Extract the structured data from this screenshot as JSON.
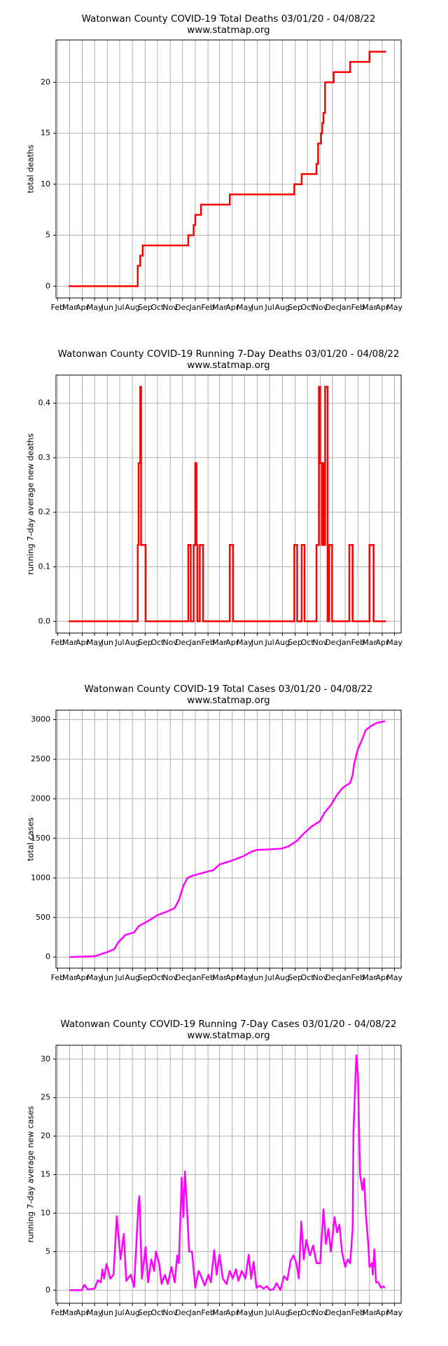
{
  "chart_data": [
    {
      "type": "line",
      "step": "post",
      "title": "Watonwan County COVID-19 Total Deaths 03/01/20 - 04/08/22",
      "subtitle": "www.statmap.org",
      "ylabel": "total deaths",
      "color": "#ff0000",
      "grid": true,
      "x": [
        "2020-03-01",
        "2020-08-14",
        "2020-08-20",
        "2020-08-26",
        "2020-12-15",
        "2020-12-28",
        "2021-01-01",
        "2021-01-15",
        "2021-03-26",
        "2021-08-30",
        "2021-09-17",
        "2021-10-23",
        "2021-10-27",
        "2021-11-03",
        "2021-11-06",
        "2021-11-09",
        "2021-11-13",
        "2021-12-04",
        "2022-01-13",
        "2022-03-01",
        "2022-04-08"
      ],
      "values": [
        0,
        2,
        3,
        4,
        5,
        6,
        7,
        8,
        9,
        10,
        11,
        12,
        14,
        15,
        16,
        17,
        20,
        21,
        22,
        23,
        23
      ],
      "xlim": [
        "2020-01-28",
        "2022-05-17"
      ],
      "ylim": [
        -1.15,
        24.15
      ],
      "yticks": [
        0,
        5,
        10,
        15,
        20
      ],
      "xticks": [
        {
          "value": "2020-02-01",
          "label": "Feb"
        },
        {
          "value": "2020-03-01",
          "label": "Mar"
        },
        {
          "value": "2020-04-01",
          "label": "Apr"
        },
        {
          "value": "2020-05-01",
          "label": "May"
        },
        {
          "value": "2020-06-01",
          "label": "Jun"
        },
        {
          "value": "2020-07-01",
          "label": "Jul"
        },
        {
          "value": "2020-08-01",
          "label": "Aug"
        },
        {
          "value": "2020-09-01",
          "label": "Sep"
        },
        {
          "value": "2020-10-01",
          "label": "Oct"
        },
        {
          "value": "2020-11-01",
          "label": "Nov"
        },
        {
          "value": "2020-12-01",
          "label": "Dec"
        },
        {
          "value": "2021-01-01",
          "label": "Jan"
        },
        {
          "value": "2021-02-01",
          "label": "Feb"
        },
        {
          "value": "2021-03-01",
          "label": "Mar"
        },
        {
          "value": "2021-04-01",
          "label": "Apr"
        },
        {
          "value": "2021-05-01",
          "label": "May"
        },
        {
          "value": "2021-06-01",
          "label": "Jun"
        },
        {
          "value": "2021-07-01",
          "label": "Jul"
        },
        {
          "value": "2021-08-01",
          "label": "Aug"
        },
        {
          "value": "2021-09-01",
          "label": "Sep"
        },
        {
          "value": "2021-10-01",
          "label": "Oct"
        },
        {
          "value": "2021-11-01",
          "label": "Nov"
        },
        {
          "value": "2021-12-01",
          "label": "Dec"
        },
        {
          "value": "2022-01-01",
          "label": "Jan"
        },
        {
          "value": "2022-02-01",
          "label": "Feb"
        },
        {
          "value": "2022-03-01",
          "label": "Mar"
        },
        {
          "value": "2022-04-01",
          "label": "Apr"
        },
        {
          "value": "2022-05-01",
          "label": "May"
        }
      ]
    },
    {
      "type": "line",
      "step": "post",
      "title": "Watonwan County COVID-19 Running 7-Day Deaths 03/01/20 - 04/08/22",
      "subtitle": "www.statmap.org",
      "ylabel": "running 7-day average new deaths",
      "color": "#ff0000",
      "grid": true,
      "x": [
        "2020-03-01",
        "2020-08-14",
        "2020-08-16",
        "2020-08-20",
        "2020-08-22",
        "2020-09-02",
        "2020-12-15",
        "2020-12-21",
        "2020-12-28",
        "2021-01-01",
        "2021-01-04",
        "2021-01-06",
        "2021-01-12",
        "2021-01-20",
        "2021-03-26",
        "2021-04-03",
        "2021-08-30",
        "2021-09-06",
        "2021-09-17",
        "2021-09-24",
        "2021-10-23",
        "2021-10-29",
        "2021-11-01",
        "2021-11-05",
        "2021-11-07",
        "2021-11-11",
        "2021-11-13",
        "2021-11-19",
        "2021-11-23",
        "2021-11-30",
        "2022-01-11",
        "2022-01-19",
        "2022-03-01",
        "2022-03-11",
        "2022-04-08"
      ],
      "values": [
        0,
        0.14,
        0.29,
        0.43,
        0.14,
        0,
        0.14,
        0,
        0.14,
        0.29,
        0.14,
        0,
        0.14,
        0,
        0.14,
        0,
        0.14,
        0,
        0.14,
        0,
        0.14,
        0.43,
        0.29,
        0.14,
        0.29,
        0.14,
        0.43,
        0,
        0.14,
        0,
        0.14,
        0,
        0.14,
        0,
        0
      ],
      "xlim": [
        "2020-01-28",
        "2022-05-17"
      ],
      "ylim": [
        -0.0215,
        0.4515
      ],
      "yticks": [
        {
          "value": 0,
          "label": "0.0"
        },
        0.1,
        0.2,
        0.3,
        0.4
      ],
      "xticks": [
        {
          "value": "2020-02-01",
          "label": "Feb"
        },
        {
          "value": "2020-03-01",
          "label": "Mar"
        },
        {
          "value": "2020-04-01",
          "label": "Apr"
        },
        {
          "value": "2020-05-01",
          "label": "May"
        },
        {
          "value": "2020-06-01",
          "label": "Jun"
        },
        {
          "value": "2020-07-01",
          "label": "Jul"
        },
        {
          "value": "2020-08-01",
          "label": "Aug"
        },
        {
          "value": "2020-09-01",
          "label": "Sep"
        },
        {
          "value": "2020-10-01",
          "label": "Oct"
        },
        {
          "value": "2020-11-01",
          "label": "Nov"
        },
        {
          "value": "2020-12-01",
          "label": "Dec"
        },
        {
          "value": "2021-01-01",
          "label": "Jan"
        },
        {
          "value": "2021-02-01",
          "label": "Feb"
        },
        {
          "value": "2021-03-01",
          "label": "Mar"
        },
        {
          "value": "2021-04-01",
          "label": "Apr"
        },
        {
          "value": "2021-05-01",
          "label": "May"
        },
        {
          "value": "2021-06-01",
          "label": "Jun"
        },
        {
          "value": "2021-07-01",
          "label": "Jul"
        },
        {
          "value": "2021-08-01",
          "label": "Aug"
        },
        {
          "value": "2021-09-01",
          "label": "Sep"
        },
        {
          "value": "2021-10-01",
          "label": "Oct"
        },
        {
          "value": "2021-11-01",
          "label": "Nov"
        },
        {
          "value": "2021-12-01",
          "label": "Dec"
        },
        {
          "value": "2022-01-01",
          "label": "Jan"
        },
        {
          "value": "2022-02-01",
          "label": "Feb"
        },
        {
          "value": "2022-03-01",
          "label": "Mar"
        },
        {
          "value": "2022-04-01",
          "label": "Apr"
        },
        {
          "value": "2022-05-01",
          "label": "May"
        }
      ]
    },
    {
      "type": "line",
      "title": "Watonwan County COVID-19 Total Cases 03/01/20 - 04/08/22",
      "subtitle": "www.statmap.org",
      "ylabel": "total cases",
      "color": "#ff00ff",
      "grid": true,
      "x": [
        "2020-03-01",
        "2020-05-01",
        "2020-05-30",
        "2020-06-18",
        "2020-06-28",
        "2020-07-15",
        "2020-08-05",
        "2020-08-16",
        "2020-08-30",
        "2020-09-16",
        "2020-10-01",
        "2020-10-22",
        "2020-11-12",
        "2020-11-22",
        "2020-12-03",
        "2020-12-13",
        "2020-12-26",
        "2021-01-24",
        "2021-02-14",
        "2021-03-01",
        "2021-03-26",
        "2021-04-26",
        "2021-05-17",
        "2021-06-01",
        "2021-06-29",
        "2021-07-30",
        "2021-08-16",
        "2021-09-06",
        "2021-09-20",
        "2021-10-11",
        "2021-11-01",
        "2021-11-11",
        "2021-11-27",
        "2021-12-12",
        "2021-12-26",
        "2022-01-13",
        "2022-01-19",
        "2022-01-23",
        "2022-02-01",
        "2022-02-12",
        "2022-02-20",
        "2022-03-05",
        "2022-03-19",
        "2022-04-08"
      ],
      "values": [
        0,
        10,
        60,
        100,
        190,
        280,
        310,
        390,
        430,
        480,
        530,
        570,
        620,
        720,
        900,
        1000,
        1030,
        1070,
        1100,
        1170,
        1210,
        1270,
        1330,
        1355,
        1360,
        1370,
        1400,
        1470,
        1550,
        1650,
        1720,
        1820,
        1920,
        2050,
        2140,
        2200,
        2300,
        2450,
        2630,
        2760,
        2870,
        2920,
        2960,
        2980
      ],
      "xlim": [
        "2020-01-28",
        "2022-05-17"
      ],
      "ylim": [
        -140,
        3120
      ],
      "yticks": [
        0,
        500,
        1000,
        1500,
        2000,
        2500,
        3000
      ],
      "xticks": [
        {
          "value": "2020-02-01",
          "label": "Feb"
        },
        {
          "value": "2020-03-01",
          "label": "Mar"
        },
        {
          "value": "2020-04-01",
          "label": "Apr"
        },
        {
          "value": "2020-05-01",
          "label": "May"
        },
        {
          "value": "2020-06-01",
          "label": "Jun"
        },
        {
          "value": "2020-07-01",
          "label": "Jul"
        },
        {
          "value": "2020-08-01",
          "label": "Aug"
        },
        {
          "value": "2020-09-01",
          "label": "Sep"
        },
        {
          "value": "2020-10-01",
          "label": "Oct"
        },
        {
          "value": "2020-11-01",
          "label": "Nov"
        },
        {
          "value": "2020-12-01",
          "label": "Dec"
        },
        {
          "value": "2021-01-01",
          "label": "Jan"
        },
        {
          "value": "2021-02-01",
          "label": "Feb"
        },
        {
          "value": "2021-03-01",
          "label": "Mar"
        },
        {
          "value": "2021-04-01",
          "label": "Apr"
        },
        {
          "value": "2021-05-01",
          "label": "May"
        },
        {
          "value": "2021-06-01",
          "label": "Jun"
        },
        {
          "value": "2021-07-01",
          "label": "Jul"
        },
        {
          "value": "2021-08-01",
          "label": "Aug"
        },
        {
          "value": "2021-09-01",
          "label": "Sep"
        },
        {
          "value": "2021-10-01",
          "label": "Oct"
        },
        {
          "value": "2021-11-01",
          "label": "Nov"
        },
        {
          "value": "2021-12-01",
          "label": "Dec"
        },
        {
          "value": "2022-01-01",
          "label": "Jan"
        },
        {
          "value": "2022-02-01",
          "label": "Feb"
        },
        {
          "value": "2022-03-01",
          "label": "Mar"
        },
        {
          "value": "2022-04-01",
          "label": "Apr"
        },
        {
          "value": "2022-05-01",
          "label": "May"
        }
      ]
    },
    {
      "type": "line",
      "title": "Watonwan County COVID-19 Running 7-Day Cases 03/01/20 - 04/08/22",
      "subtitle": "www.statmap.org",
      "ylabel": "running 7-day average new cases",
      "color": "#ff00ff",
      "grid": true,
      "x": [
        "2020-03-01",
        "2020-03-31",
        "2020-04-06",
        "2020-04-14",
        "2020-05-01",
        "2020-05-09",
        "2020-05-16",
        "2020-05-20",
        "2020-05-24",
        "2020-05-30",
        "2020-06-08",
        "2020-06-16",
        "2020-06-24",
        "2020-07-03",
        "2020-07-11",
        "2020-07-17",
        "2020-07-28",
        "2020-08-05",
        "2020-08-16",
        "2020-08-18",
        "2020-08-24",
        "2020-09-02",
        "2020-09-08",
        "2020-09-16",
        "2020-09-23",
        "2020-09-27",
        "2020-10-05",
        "2020-10-11",
        "2020-10-19",
        "2020-10-26",
        "2020-11-04",
        "2020-11-12",
        "2020-11-18",
        "2020-11-22",
        "2020-11-29",
        "2020-12-03",
        "2020-12-07",
        "2020-12-11",
        "2020-12-17",
        "2020-12-24",
        "2021-01-01",
        "2021-01-09",
        "2021-01-15",
        "2021-01-24",
        "2021-02-02",
        "2021-02-08",
        "2021-02-16",
        "2021-02-22",
        "2021-03-01",
        "2021-03-09",
        "2021-03-18",
        "2021-03-26",
        "2021-04-02",
        "2021-04-10",
        "2021-04-16",
        "2021-04-24",
        "2021-05-03",
        "2021-05-11",
        "2021-05-17",
        "2021-05-23",
        "2021-05-30",
        "2021-06-07",
        "2021-06-16",
        "2021-06-24",
        "2021-07-02",
        "2021-07-10",
        "2021-07-18",
        "2021-07-27",
        "2021-08-05",
        "2021-08-13",
        "2021-08-21",
        "2021-08-28",
        "2021-09-04",
        "2021-09-10",
        "2021-09-16",
        "2021-09-22",
        "2021-09-28",
        "2021-10-07",
        "2021-10-15",
        "2021-10-23",
        "2021-11-01",
        "2021-11-09",
        "2021-11-15",
        "2021-11-21",
        "2021-11-27",
        "2021-12-06",
        "2021-12-12",
        "2021-12-18",
        "2021-12-24",
        "2022-01-01",
        "2022-01-07",
        "2022-01-13",
        "2022-01-19",
        "2022-01-21",
        "2022-01-28",
        "2022-02-01",
        "2022-02-06",
        "2022-02-12",
        "2022-02-16",
        "2022-02-20",
        "2022-02-26",
        "2022-03-01",
        "2022-03-07",
        "2022-03-09",
        "2022-03-13",
        "2022-03-17",
        "2022-03-23",
        "2022-03-29",
        "2022-04-03",
        "2022-04-08"
      ],
      "values": [
        0,
        0,
        0.7,
        0.1,
        0.2,
        1.3,
        1.0,
        2.7,
        1.5,
        3.4,
        1.5,
        2.0,
        9.6,
        4.0,
        7.3,
        1.2,
        2.0,
        0.4,
        11.5,
        12.2,
        1.5,
        5.6,
        1.0,
        4.0,
        2.5,
        5.0,
        3.5,
        0.8,
        2.0,
        0.8,
        3.0,
        1.0,
        4.5,
        3.5,
        14.6,
        9.5,
        15.4,
        11.5,
        5.0,
        5.0,
        0.3,
        2.5,
        1.8,
        0.6,
        2.0,
        1.0,
        5.2,
        2.0,
        4.6,
        1.5,
        0.8,
        2.5,
        1.5,
        2.7,
        1.2,
        2.5,
        1.5,
        4.6,
        1.5,
        3.7,
        0.3,
        0.6,
        0.2,
        0.5,
        0.0,
        0.1,
        0.9,
        0.0,
        1.8,
        1.3,
        3.8,
        4.5,
        3.5,
        1.5,
        8.9,
        4.0,
        6.5,
        4.5,
        5.8,
        3.5,
        3.5,
        10.5,
        6.0,
        8.0,
        5.0,
        9.5,
        7.5,
        8.5,
        5.0,
        3.0,
        4.0,
        3.5,
        8.0,
        20.5,
        30.5,
        28.0,
        15.0,
        13.0,
        14.5,
        10.0,
        6.0,
        3.0,
        3.5,
        2.0,
        5.3,
        1.0,
        1.0,
        0.3,
        0.5,
        0.3
      ],
      "xlim": [
        "2020-01-28",
        "2022-05-17"
      ],
      "ylim": [
        -1.7,
        31.8
      ],
      "yticks": [
        0,
        5,
        10,
        15,
        20,
        25,
        30
      ],
      "xticks": [
        {
          "value": "2020-02-01",
          "label": "Feb"
        },
        {
          "value": "2020-03-01",
          "label": "Mar"
        },
        {
          "value": "2020-04-01",
          "label": "Apr"
        },
        {
          "value": "2020-05-01",
          "label": "May"
        },
        {
          "value": "2020-06-01",
          "label": "Jun"
        },
        {
          "value": "2020-07-01",
          "label": "Jul"
        },
        {
          "value": "2020-08-01",
          "label": "Aug"
        },
        {
          "value": "2020-09-01",
          "label": "Sep"
        },
        {
          "value": "2020-10-01",
          "label": "Oct"
        },
        {
          "value": "2020-11-01",
          "label": "Nov"
        },
        {
          "value": "2020-12-01",
          "label": "Dec"
        },
        {
          "value": "2021-01-01",
          "label": "Jan"
        },
        {
          "value": "2021-02-01",
          "label": "Feb"
        },
        {
          "value": "2021-03-01",
          "label": "Mar"
        },
        {
          "value": "2021-04-01",
          "label": "Apr"
        },
        {
          "value": "2021-05-01",
          "label": "May"
        },
        {
          "value": "2021-06-01",
          "label": "Jun"
        },
        {
          "value": "2021-07-01",
          "label": "Jul"
        },
        {
          "value": "2021-08-01",
          "label": "Aug"
        },
        {
          "value": "2021-09-01",
          "label": "Sep"
        },
        {
          "value": "2021-10-01",
          "label": "Oct"
        },
        {
          "value": "2021-11-01",
          "label": "Nov"
        },
        {
          "value": "2021-12-01",
          "label": "Dec"
        },
        {
          "value": "2022-01-01",
          "label": "Jan"
        },
        {
          "value": "2022-02-01",
          "label": "Feb"
        },
        {
          "value": "2022-03-01",
          "label": "Mar"
        },
        {
          "value": "2022-04-01",
          "label": "Apr"
        },
        {
          "value": "2022-05-01",
          "label": "May"
        }
      ]
    }
  ]
}
